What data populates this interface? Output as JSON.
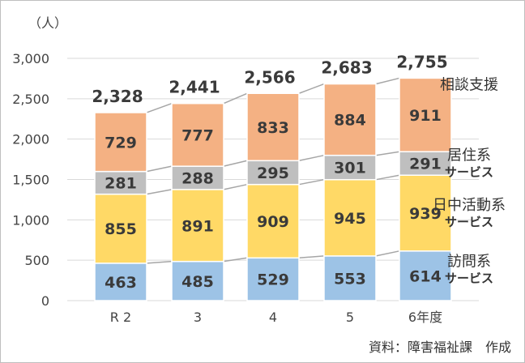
{
  "chart_data": {
    "type": "bar",
    "stacked": true,
    "unit_label": "（人）",
    "source_note": "資料：障害福祉課　作成",
    "categories": [
      "R 2",
      "3",
      "4",
      "5",
      "6年度"
    ],
    "ylim": [
      0,
      3000
    ],
    "yticks": [
      0,
      500,
      1000,
      1500,
      2000,
      2500,
      3000
    ],
    "ytick_labels": [
      "0",
      "500",
      "1,000",
      "1,500",
      "2,000",
      "2,500",
      "3,000"
    ],
    "grid": true,
    "series": [
      {
        "name": "訪問系サービス",
        "label_lines": [
          "訪問系",
          "サービス"
        ],
        "color": "#9dc3e6",
        "values": [
          463,
          485,
          529,
          553,
          614
        ]
      },
      {
        "name": "日中活動系サービス",
        "label_lines": [
          "日中活動系",
          "サービス"
        ],
        "color": "#ffd966",
        "values": [
          855,
          891,
          909,
          945,
          939
        ]
      },
      {
        "name": "居住系サービス",
        "label_lines": [
          "居住系",
          "サービス"
        ],
        "color": "#bfbfbf",
        "values": [
          281,
          288,
          295,
          301,
          291
        ]
      },
      {
        "name": "相談支援",
        "label_lines": [
          "相談支援"
        ],
        "color": "#f4b183",
        "values": [
          729,
          777,
          833,
          884,
          911
        ]
      }
    ],
    "totals": [
      2328,
      2441,
      2566,
      2683,
      2755
    ],
    "total_labels": [
      "2,328",
      "2,441",
      "2,566",
      "2,683",
      "2,755"
    ]
  }
}
